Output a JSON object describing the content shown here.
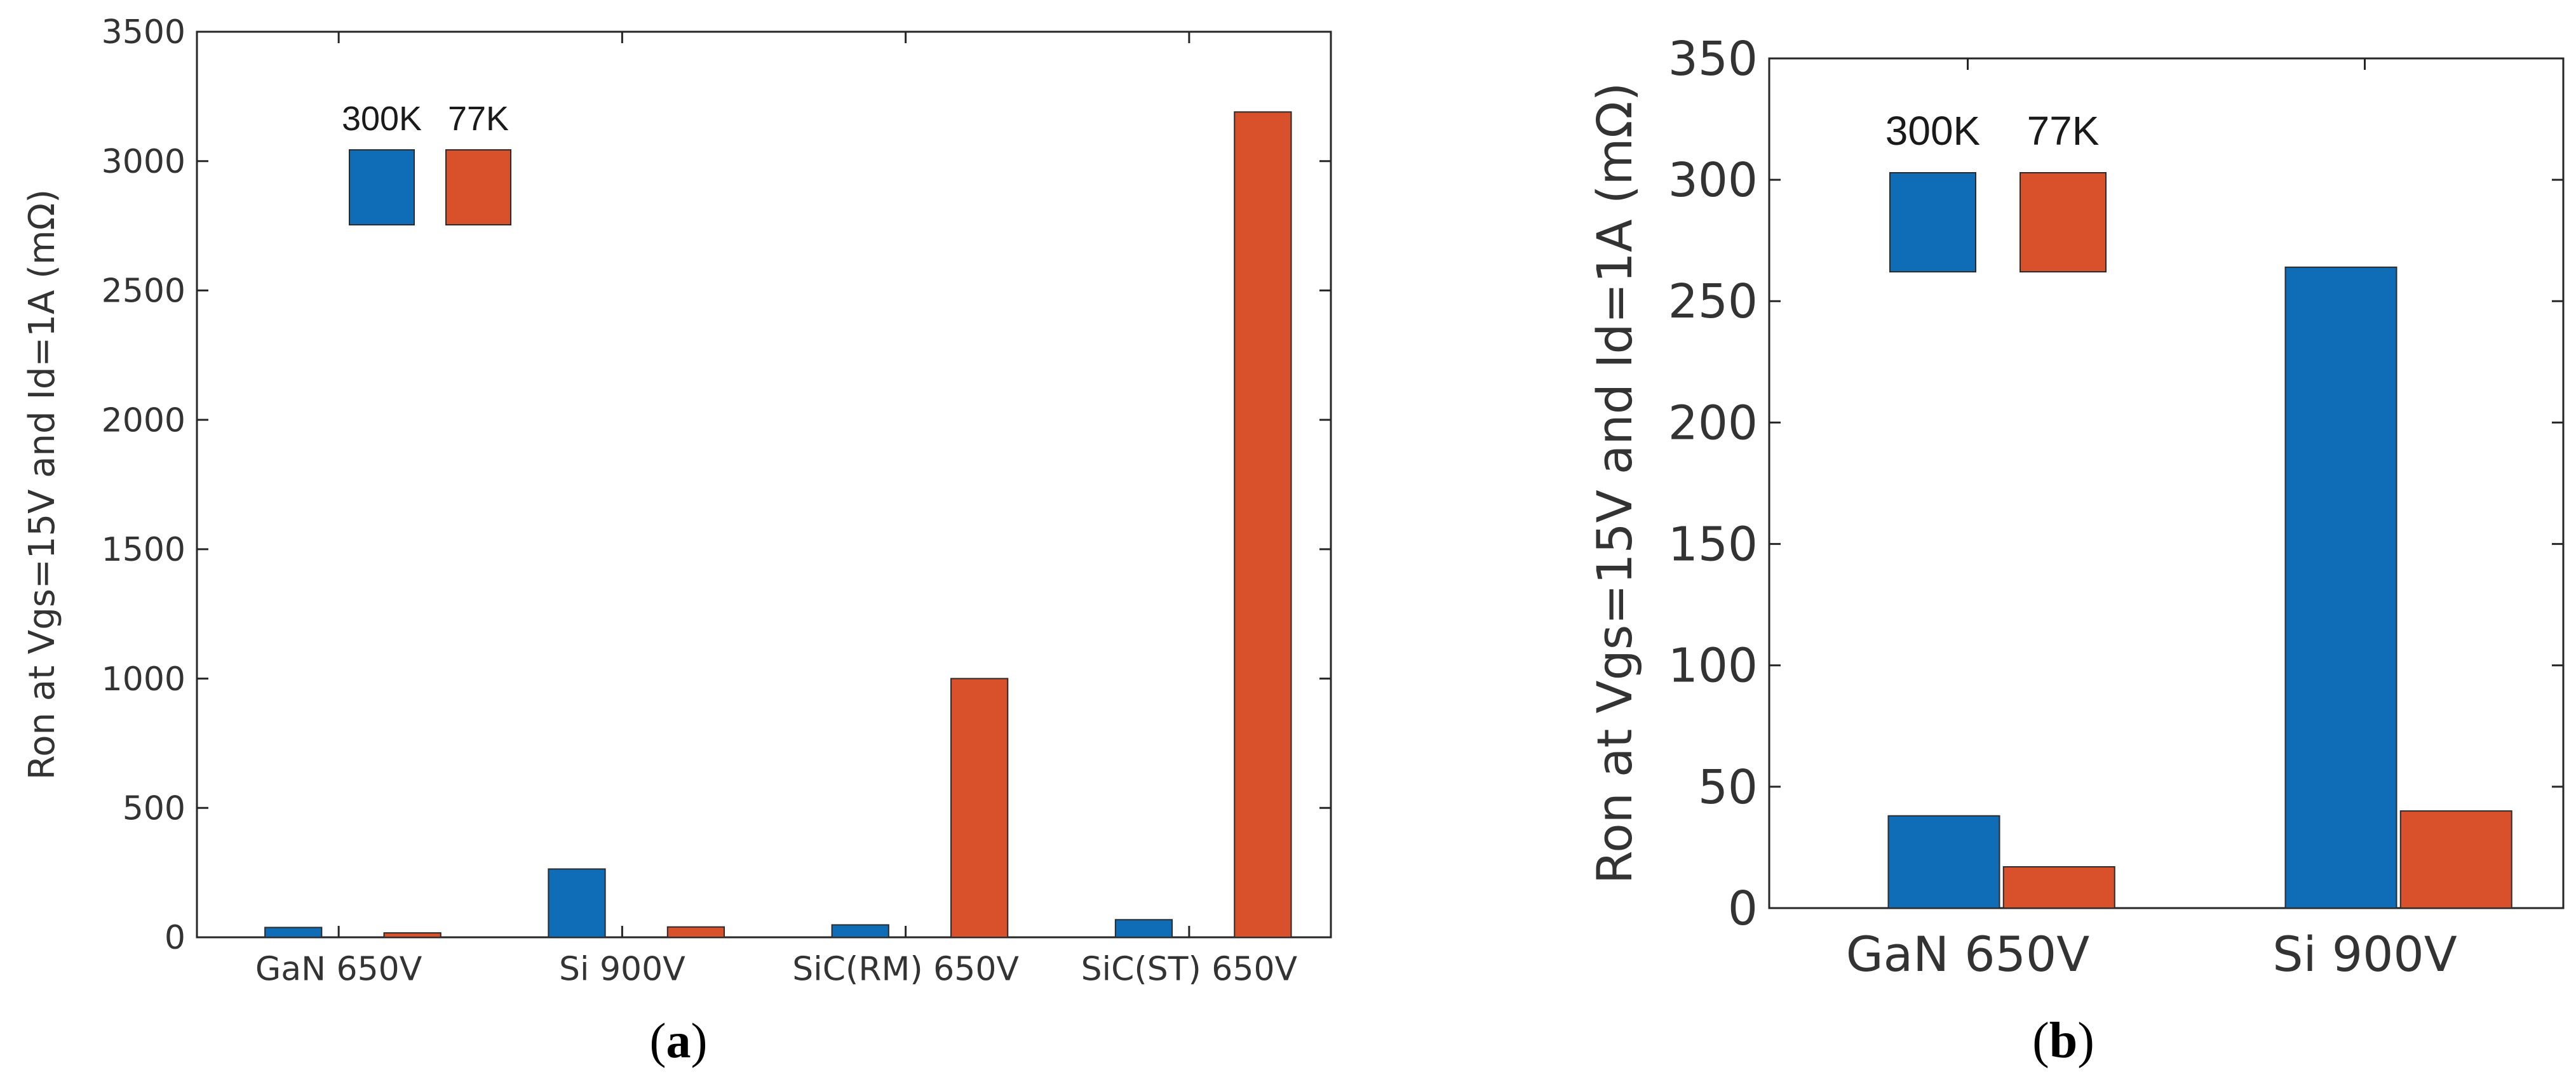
{
  "chart_data": [
    {
      "type": "bar",
      "panel_label": "(a)",
      "panel_letter": "a",
      "ylabel": "Ron at Vgs=15V and Id=1A (mΩ)",
      "categories": [
        "GaN 650V",
        "Si 900V",
        "SiC(RM) 650V",
        "SiC(ST) 650V"
      ],
      "series": [
        {
          "name": "300K",
          "color": "#0e6db6",
          "values": [
            38,
            264,
            48,
            68
          ]
        },
        {
          "name": "77K",
          "color": "#d9512b",
          "values": [
            17,
            40,
            1000,
            3190
          ]
        }
      ],
      "ylim": [
        0,
        3500
      ],
      "yticks": [
        0,
        500,
        1000,
        1500,
        2000,
        2500,
        3000,
        3500
      ],
      "legend_placement": "top-left",
      "grid": false
    },
    {
      "type": "bar",
      "panel_label": "(b)",
      "panel_letter": "b",
      "ylabel": "Ron at Vgs=15V and Id=1A (mΩ)",
      "categories": [
        "GaN 650V",
        "Si 900V"
      ],
      "series": [
        {
          "name": "300K",
          "color": "#0e6db6",
          "values": [
            38,
            264
          ]
        },
        {
          "name": "77K",
          "color": "#d9512b",
          "values": [
            17,
            40
          ]
        }
      ],
      "ylim": [
        0,
        350
      ],
      "yticks": [
        0,
        50,
        100,
        150,
        200,
        250,
        300,
        350
      ],
      "legend_placement": "top-left",
      "grid": false
    }
  ]
}
